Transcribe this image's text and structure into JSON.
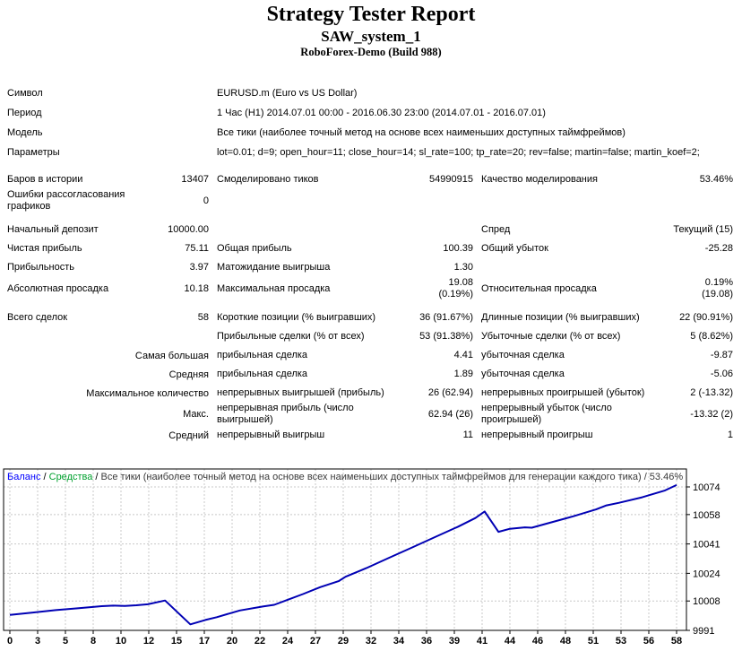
{
  "header": {
    "title": "Strategy Tester Report",
    "subtitle": "SAW_system_1",
    "build": "RoboForex-Demo (Build 988)"
  },
  "info_rows": [
    {
      "label": "Символ",
      "value": "EURUSD.m (Euro vs US Dollar)"
    },
    {
      "label": "Период",
      "value": "1 Час (H1) 2014.07.01 00:00 - 2016.06.30 23:00 (2014.07.01 - 2016.07.01)"
    },
    {
      "label": "Модель",
      "value": "Все тики (наиболее точный метод на основе всех наименьших доступных таймфреймов)"
    },
    {
      "label": "Параметры",
      "value": "lot=0.01; d=9; open_hour=11; close_hour=14; sl_rate=100; tp_rate=20; rev=false; martin=false; martin_koef=2;"
    }
  ],
  "stat_rows": [
    {
      "c1": {
        "label": "Баров в истории",
        "value": "13407"
      },
      "c2": {
        "label": "Смоделировано тиков",
        "value": "54990915"
      },
      "c3": {
        "label": "Качество моделирования",
        "value": "53.46%"
      }
    },
    {
      "c1": {
        "label": "Ошибки рассогласования графиков",
        "value": "0"
      }
    },
    {
      "c1": {
        "label": "Начальный депозит",
        "value": "10000.00"
      },
      "c3": {
        "label": "Спред",
        "value": "Текущий (15)"
      }
    },
    {
      "c1": {
        "label": "Чистая прибыль",
        "value": "75.11"
      },
      "c2": {
        "label": "Общая прибыль",
        "value": "100.39"
      },
      "c3": {
        "label": "Общий убыток",
        "value": "-25.28"
      }
    },
    {
      "c1": {
        "label": "Прибыльность",
        "value": "3.97"
      },
      "c2": {
        "label": "Матожидание выигрыша",
        "value": "1.30"
      }
    },
    {
      "c1": {
        "label": "Абсолютная просадка",
        "value": "10.18"
      },
      "c2": {
        "label": "Максимальная просадка",
        "value": "19.08\n(0.19%)"
      },
      "c3": {
        "label": "Относительная просадка",
        "value": "0.19%\n(19.08)"
      }
    },
    {
      "c1": {
        "label": "Всего сделок",
        "value": "58"
      },
      "c2": {
        "label": "Короткие позиции (% выигравших)",
        "value": "36 (91.67%)"
      },
      "c3": {
        "label": "Длинные позиции (% выигравших)",
        "value": "22 (90.91%)"
      }
    },
    {
      "c2": {
        "label": "Прибыльные сделки (% от всех)",
        "value": "53 (91.38%)"
      },
      "c3": {
        "label": "Убыточные сделки (% от всех)",
        "value": "5 (8.62%)"
      }
    },
    {
      "c1r": "Самая большая",
      "c2": {
        "label": "прибыльная сделка",
        "value": "4.41"
      },
      "c3": {
        "label": "убыточная сделка",
        "value": "-9.87"
      }
    },
    {
      "c1r": "Средняя",
      "c2": {
        "label": "прибыльная сделка",
        "value": "1.89"
      },
      "c3": {
        "label": "убыточная сделка",
        "value": "-5.06"
      }
    },
    {
      "c1r": "Максимальное количество",
      "c2": {
        "label": "непрерывных выигрышей (прибыль)",
        "value": "26 (62.94)"
      },
      "c3": {
        "label": "непрерывных проигрышей (убыток)",
        "value": "2 (-13.32)"
      }
    },
    {
      "c1r": "Макс.",
      "c2": {
        "label": "непрерывная прибыль (число выигрышей)",
        "value": "62.94 (26)"
      },
      "c3": {
        "label": "непрерывный убыток (число проигрышей)",
        "value": "-13.32 (2)"
      }
    },
    {
      "c1r": "Средний",
      "c2": {
        "label": "непрерывный выигрыш",
        "value": "11"
      },
      "c3": {
        "label": "непрерывный проигрыш",
        "value": "1"
      }
    }
  ],
  "chart_data": {
    "type": "line",
    "legend": {
      "balance_label": "Баланс",
      "equity_label": "Средства",
      "separator": " / ",
      "note": "Все тики (наиболее точный метод на основе всех наименьших доступных таймфреймов для генерации каждого тика) / 53.46%"
    },
    "x_ticks": [
      0,
      3,
      5,
      8,
      10,
      12,
      15,
      17,
      20,
      22,
      24,
      27,
      29,
      32,
      34,
      36,
      39,
      41,
      44,
      46,
      48,
      51,
      53,
      56,
      58
    ],
    "y_ticks": [
      9991,
      10008,
      10024,
      10041,
      10058,
      10074
    ],
    "xlim": [
      0,
      58
    ],
    "ylim": [
      9991,
      10084.5
    ],
    "grid": true,
    "legend_position": "top-left",
    "series": [
      {
        "name": "Баланс",
        "color": "#0000B4",
        "points": [
          [
            0,
            10000.0
          ],
          [
            2,
            10001.3
          ],
          [
            4,
            10002.7
          ],
          [
            6,
            10003.8
          ],
          [
            8,
            10005.0
          ],
          [
            9,
            10005.3
          ],
          [
            10,
            10005.1
          ],
          [
            11,
            10005.5
          ],
          [
            12,
            10006.1
          ],
          [
            13.5,
            10008.3
          ],
          [
            15.7,
            9994.5
          ],
          [
            17,
            9997.0
          ],
          [
            18,
            9998.6
          ],
          [
            20,
            10002.5
          ],
          [
            22,
            10004.8
          ],
          [
            23,
            10005.8
          ],
          [
            24,
            10008.3
          ],
          [
            25.5,
            10012.0
          ],
          [
            27,
            10016.0
          ],
          [
            28.6,
            10019.5
          ],
          [
            29.2,
            10022.0
          ],
          [
            31,
            10027.0
          ],
          [
            33,
            10033.0
          ],
          [
            35,
            10039.0
          ],
          [
            37,
            10045.0
          ],
          [
            39,
            10051.0
          ],
          [
            40.5,
            10056.0
          ],
          [
            41.3,
            10059.8
          ],
          [
            42.5,
            10048.0
          ],
          [
            43.5,
            10049.8
          ],
          [
            44.8,
            10050.6
          ],
          [
            45.4,
            10050.4
          ],
          [
            47,
            10053.3
          ],
          [
            49,
            10057.0
          ],
          [
            51,
            10061.0
          ],
          [
            51.9,
            10063.3
          ],
          [
            53,
            10064.8
          ],
          [
            55,
            10068.0
          ],
          [
            57,
            10072.0
          ],
          [
            58,
            10075.1
          ]
        ]
      }
    ],
    "colors": {
      "balance_legend": "#0000FF",
      "equity_legend": "#00A02E",
      "note_text": "#3a3a3a",
      "grid": "#c8c8c8",
      "border": "#000000",
      "line": "#0000B4"
    }
  }
}
